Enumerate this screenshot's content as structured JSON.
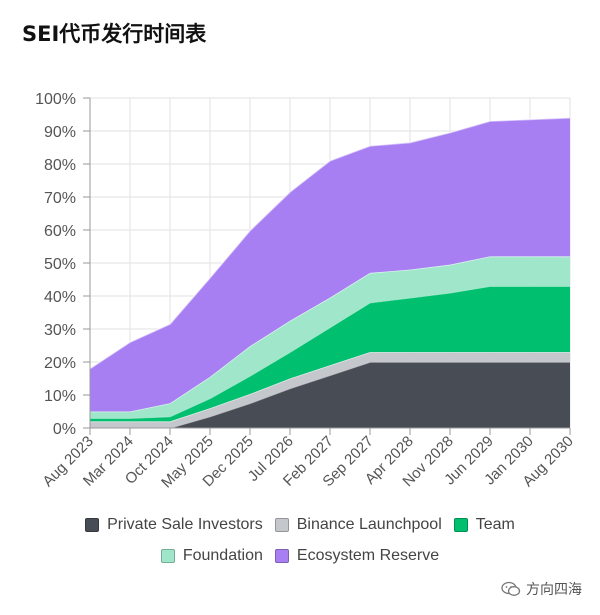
{
  "title": "SEI代币发行时间表",
  "watermark": "方向四海",
  "chart_data": {
    "type": "area",
    "stacked": true,
    "x": [
      "Aug 2023",
      "Mar 2024",
      "Oct 2024",
      "May 2025",
      "Dec 2025",
      "Jul 2026",
      "Feb 2027",
      "Sep 2027",
      "Apr 2028",
      "Nov 2028",
      "Jun 2029",
      "Jan 2030",
      "Aug 2030"
    ],
    "ylim": [
      0,
      100
    ],
    "yticks": [
      "0%",
      "10%",
      "20%",
      "30%",
      "40%",
      "50%",
      "60%",
      "70%",
      "80%",
      "90%",
      "100%"
    ],
    "grid": true,
    "legend_position": "bottom",
    "series": [
      {
        "name": "Private Sale Investors",
        "color": "#474c55",
        "values": [
          0,
          0,
          0,
          3.5,
          7.5,
          12,
          16,
          20,
          20,
          20,
          20,
          20,
          20
        ]
      },
      {
        "name": "Binance Launchpool",
        "color": "#c4c7cc",
        "values": [
          2,
          2,
          2,
          2.5,
          2.8,
          3,
          3,
          3,
          3,
          3,
          3,
          3,
          3
        ]
      },
      {
        "name": "Team",
        "color": "#00bf6f",
        "values": [
          1,
          1,
          1.5,
          3,
          5.5,
          8,
          11.5,
          15,
          16.5,
          18,
          20,
          20,
          20
        ]
      },
      {
        "name": "Foundation",
        "color": "#9fe6cb",
        "values": [
          2,
          2,
          4,
          6.5,
          9,
          9.5,
          9,
          9,
          8.5,
          8.5,
          9,
          9,
          9
        ]
      },
      {
        "name": "Ecosystem Reserve",
        "color": "#a77ff2",
        "values": [
          13,
          21,
          24,
          30,
          35,
          39,
          41.5,
          38.5,
          38.5,
          40,
          41,
          41.5,
          42
        ]
      }
    ]
  }
}
